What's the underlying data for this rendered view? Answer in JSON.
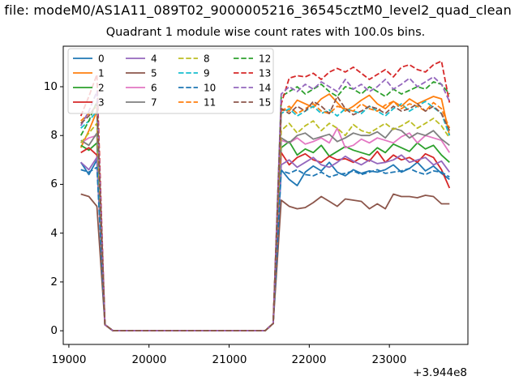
{
  "figure": {
    "suptitle_visible_text": "a file: modeM0/AS1A11_089T02_9000005216_36545cztM0_level2_quad_clean",
    "background_color": "#ffffff",
    "axes_frame_color": "#000000"
  },
  "chart_data": {
    "type": "line",
    "title": "Quadrant 1 module wise count rates with 100.0s bins.",
    "xlabel": "",
    "ylabel": "",
    "x_offset_text": "+3.944e8",
    "xlim": [
      18930,
      23980
    ],
    "ylim": [
      -0.56,
      11.66
    ],
    "xticks": {
      "values": [
        19000,
        20000,
        21000,
        22000,
        23000
      ],
      "labels": [
        "19000",
        "20000",
        "21000",
        "22000",
        "23000"
      ]
    },
    "yticks": {
      "values": [
        0,
        2,
        4,
        6,
        8,
        10
      ],
      "labels": [
        "0",
        "2",
        "4",
        "6",
        "8",
        "10"
      ]
    },
    "grid": false,
    "legend": {
      "position": "upper left",
      "columns": 4,
      "order": "column-major"
    },
    "x_structure": {
      "x_first": 19150,
      "x_step": 100,
      "n_points": 47,
      "pre_gap_x": [
        19150,
        19250,
        19350
      ],
      "fall_x": 19450,
      "fall_y": 0.25,
      "zero_x_start": 19550,
      "zero_x_end": 21450,
      "zero_count": 20,
      "rise_x": 21550,
      "rise_y": 0.3,
      "post_gap_x_start": 21650,
      "post_gap_x_end": 23750
    },
    "series": [
      {
        "label": "0",
        "color": "#1f77b4",
        "dashed": false,
        "pre_gap_y": [
          6.9,
          6.4,
          7.0
        ],
        "post_gap_y": [
          6.6,
          6.2,
          5.95,
          6.5,
          6.75,
          6.55,
          6.9,
          6.5,
          6.35,
          6.6,
          6.45,
          6.55,
          6.5,
          6.6,
          6.8,
          6.5,
          6.65,
          6.9,
          6.55,
          6.75,
          6.45,
          6.2
        ]
      },
      {
        "label": "1",
        "color": "#ff7f0e",
        "dashed": false,
        "pre_gap_y": [
          7.5,
          8.2,
          9.0
        ],
        "post_gap_y": [
          9.1,
          9.0,
          9.45,
          9.3,
          9.15,
          9.5,
          9.7,
          9.35,
          9.0,
          9.2,
          9.45,
          9.65,
          9.3,
          9.1,
          9.4,
          9.2,
          9.5,
          9.3,
          9.45,
          9.6,
          9.5,
          8.0
        ]
      },
      {
        "label": "2",
        "color": "#2ca02c",
        "dashed": false,
        "pre_gap_y": [
          7.6,
          7.4,
          7.7
        ],
        "post_gap_y": [
          7.5,
          7.75,
          7.2,
          7.45,
          7.3,
          7.6,
          7.15,
          7.35,
          7.55,
          7.4,
          7.3,
          7.2,
          7.5,
          7.3,
          7.65,
          7.5,
          7.35,
          7.7,
          7.45,
          7.6,
          7.2,
          6.9
        ]
      },
      {
        "label": "3",
        "color": "#d62728",
        "dashed": false,
        "pre_gap_y": [
          7.3,
          7.5,
          7.2
        ],
        "post_gap_y": [
          7.3,
          6.8,
          7.1,
          7.25,
          7.0,
          6.9,
          7.15,
          7.0,
          7.05,
          6.9,
          7.1,
          6.95,
          7.35,
          6.9,
          7.2,
          7.0,
          7.1,
          6.9,
          7.25,
          7.1,
          6.6,
          5.85
        ]
      },
      {
        "label": "4",
        "color": "#9467bd",
        "dashed": false,
        "pre_gap_y": [
          6.9,
          6.6,
          7.1
        ],
        "post_gap_y": [
          6.8,
          7.0,
          6.7,
          6.9,
          7.1,
          6.8,
          6.7,
          6.9,
          7.15,
          6.95,
          6.8,
          7.0,
          6.85,
          6.9,
          7.0,
          7.2,
          6.9,
          7.0,
          7.1,
          6.8,
          6.95,
          6.5
        ]
      },
      {
        "label": "5",
        "color": "#8c564b",
        "dashed": false,
        "pre_gap_y": [
          5.6,
          5.5,
          5.1
        ],
        "post_gap_y": [
          5.35,
          5.1,
          5.0,
          5.05,
          5.25,
          5.5,
          5.3,
          5.1,
          5.4,
          5.35,
          5.3,
          5.0,
          5.2,
          5.0,
          5.6,
          5.5,
          5.5,
          5.45,
          5.55,
          5.5,
          5.2,
          5.2
        ]
      },
      {
        "label": "6",
        "color": "#e377c2",
        "dashed": false,
        "pre_gap_y": [
          7.7,
          7.9,
          8.0
        ],
        "post_gap_y": [
          7.8,
          7.7,
          7.9,
          7.65,
          7.75,
          7.9,
          7.7,
          8.3,
          7.5,
          7.6,
          7.85,
          7.7,
          7.9,
          7.8,
          7.7,
          7.95,
          8.1,
          7.7,
          8.0,
          7.9,
          7.8,
          7.3
        ]
      },
      {
        "label": "7",
        "color": "#7f7f7f",
        "dashed": false,
        "pre_gap_y": [
          7.8,
          7.6,
          8.1
        ],
        "post_gap_y": [
          7.9,
          7.7,
          8.0,
          8.1,
          7.85,
          7.95,
          8.05,
          7.75,
          7.9,
          8.1,
          8.0,
          8.0,
          8.15,
          7.9,
          8.3,
          8.2,
          7.9,
          8.1,
          8.0,
          8.2,
          7.85,
          7.6
        ]
      },
      {
        "label": "8",
        "color": "#bcbd22",
        "dashed": true,
        "pre_gap_y": [
          7.7,
          8.1,
          8.5
        ],
        "post_gap_y": [
          8.2,
          8.5,
          8.1,
          8.4,
          8.6,
          8.2,
          8.5,
          8.3,
          8.0,
          8.45,
          8.2,
          8.1,
          8.3,
          8.5,
          8.25,
          8.4,
          8.6,
          8.3,
          8.5,
          8.7,
          8.4,
          7.9
        ]
      },
      {
        "label": "9",
        "color": "#17becf",
        "dashed": true,
        "pre_gap_y": [
          8.3,
          8.6,
          9.0
        ],
        "post_gap_y": [
          8.9,
          9.1,
          8.8,
          9.0,
          9.2,
          8.9,
          9.05,
          8.8,
          9.1,
          9.0,
          8.9,
          9.2,
          9.0,
          8.8,
          9.1,
          9.3,
          9.0,
          9.2,
          9.4,
          9.15,
          8.9,
          8.0
        ]
      },
      {
        "label": "10",
        "color": "#1f77b4",
        "dashed": true,
        "pre_gap_y": [
          6.6,
          6.5,
          6.7
        ],
        "post_gap_y": [
          6.55,
          6.45,
          6.6,
          6.4,
          6.35,
          6.5,
          6.3,
          6.4,
          6.45,
          6.55,
          6.4,
          6.5,
          6.6,
          6.45,
          6.5,
          6.55,
          6.65,
          6.5,
          6.4,
          6.55,
          6.5,
          6.3
        ]
      },
      {
        "label": "11",
        "color": "#ff7f0e",
        "dashed": true,
        "pre_gap_y": [
          8.6,
          8.9,
          9.2
        ],
        "post_gap_y": [
          9.0,
          9.2,
          8.9,
          9.1,
          9.3,
          9.0,
          8.9,
          9.2,
          9.1,
          9.0,
          9.3,
          9.1,
          9.0,
          9.25,
          9.4,
          9.1,
          9.3,
          9.2,
          9.0,
          9.35,
          9.1,
          8.3
        ]
      },
      {
        "label": "12",
        "color": "#2ca02c",
        "dashed": true,
        "pre_gap_y": [
          8.0,
          8.6,
          9.4
        ],
        "post_gap_y": [
          9.6,
          9.8,
          10.0,
          9.7,
          9.9,
          10.1,
          9.8,
          9.6,
          10.0,
          9.9,
          9.7,
          10.0,
          9.8,
          9.6,
          9.9,
          9.7,
          9.85,
          10.0,
          9.9,
          10.2,
          10.1,
          9.7
        ]
      },
      {
        "label": "13",
        "color": "#d62728",
        "dashed": true,
        "pre_gap_y": [
          8.8,
          9.6,
          10.5
        ],
        "post_gap_y": [
          9.3,
          10.35,
          10.45,
          10.4,
          10.55,
          10.3,
          10.6,
          10.75,
          10.6,
          10.8,
          10.55,
          10.3,
          10.5,
          10.7,
          10.4,
          10.8,
          10.9,
          10.7,
          10.6,
          10.9,
          11.05,
          9.35
        ]
      },
      {
        "label": "14",
        "color": "#9467bd",
        "dashed": true,
        "pre_gap_y": [
          8.4,
          9.0,
          9.8
        ],
        "post_gap_y": [
          9.7,
          10.0,
          9.8,
          10.1,
          9.9,
          10.2,
          10.0,
          9.8,
          10.3,
          9.9,
          10.1,
          9.8,
          10.0,
          10.3,
          9.9,
          10.1,
          10.35,
          10.0,
          10.2,
          10.4,
          10.1,
          9.4
        ]
      },
      {
        "label": "15",
        "color": "#8c564b",
        "dashed": true,
        "pre_gap_y": [
          8.5,
          8.8,
          9.3
        ],
        "post_gap_y": [
          9.1,
          8.9,
          9.2,
          9.0,
          9.4,
          9.2,
          8.9,
          9.6,
          9.1,
          8.85,
          9.0,
          9.2,
          9.1,
          8.9,
          9.2,
          9.0,
          9.1,
          9.3,
          9.0,
          9.2,
          8.9,
          8.2
        ]
      }
    ]
  }
}
